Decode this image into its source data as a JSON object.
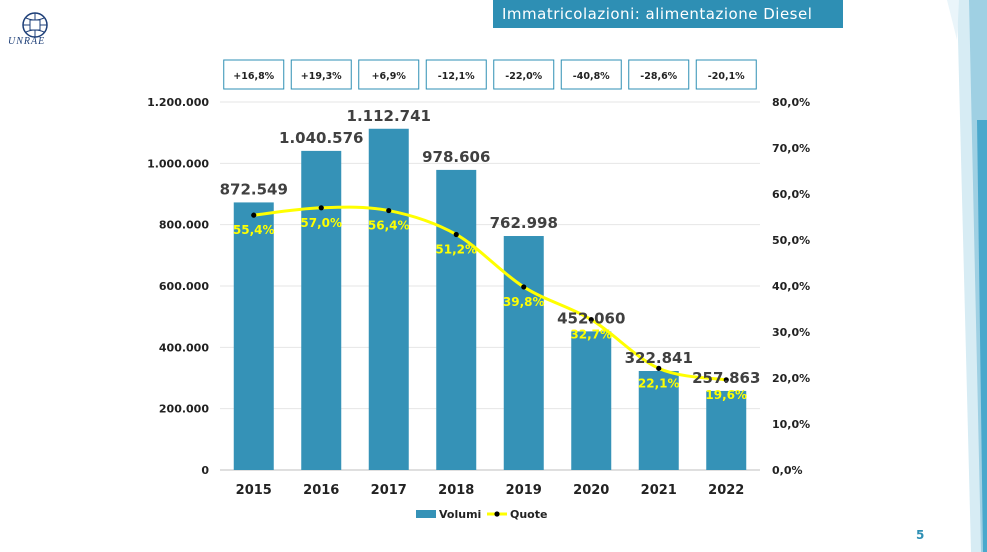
{
  "header": {
    "title": "Immatricolazioni: alimentazione Diesel"
  },
  "logo": {
    "text": "UNRAE"
  },
  "page_number": "5",
  "colors": {
    "bar": "#3592b7",
    "line": "#ffff00",
    "marker": "#000000",
    "title_bg": "#2e8fb4",
    "yoy_border": "#2e8fb4"
  },
  "chart_data": {
    "type": "bar",
    "title": "",
    "categories": [
      "2015",
      "2016",
      "2017",
      "2018",
      "2019",
      "2020",
      "2021",
      "2022"
    ],
    "series": [
      {
        "name": "Volumi",
        "type": "bar",
        "axis": "left",
        "values": [
          872549,
          1040576,
          1112741,
          978606,
          762998,
          452060,
          322841,
          257863
        ],
        "labels": [
          "872.549",
          "1.040.576",
          "1.112.741",
          "978.606",
          "762.998",
          "452.060",
          "322.841",
          "257.863"
        ]
      },
      {
        "name": "Quote",
        "type": "line",
        "axis": "right",
        "values": [
          55.4,
          57.0,
          56.4,
          51.2,
          39.8,
          32.7,
          22.1,
          19.6
        ],
        "labels": [
          "55,4%",
          "57,0%",
          "56,4%",
          "51,2%",
          "39,8%",
          "32,7%",
          "22,1%",
          "19,6%"
        ]
      }
    ],
    "yoy_changes": [
      "+16,8%",
      "+19,3%",
      "+6,9%",
      "-12,1%",
      "-22,0%",
      "-40,8%",
      "-28,6%",
      "-20,1%"
    ],
    "y_left": {
      "min": 0,
      "max": 1200000,
      "ticks": [
        0,
        200000,
        400000,
        600000,
        800000,
        1000000,
        1200000
      ],
      "tick_labels": [
        "0",
        "200.000",
        "400.000",
        "600.000",
        "800.000",
        "1.000.000",
        "1.200.000"
      ]
    },
    "y_right": {
      "min": 0,
      "max": 80,
      "ticks": [
        0,
        10,
        20,
        30,
        40,
        50,
        60,
        70,
        80
      ],
      "tick_labels": [
        "0,0%",
        "10,0%",
        "20,0%",
        "30,0%",
        "40,0%",
        "50,0%",
        "60,0%",
        "70,0%",
        "80,0%"
      ]
    },
    "grid": true,
    "legend": {
      "position": "bottom",
      "items": [
        "Volumi",
        "Quote"
      ]
    }
  }
}
